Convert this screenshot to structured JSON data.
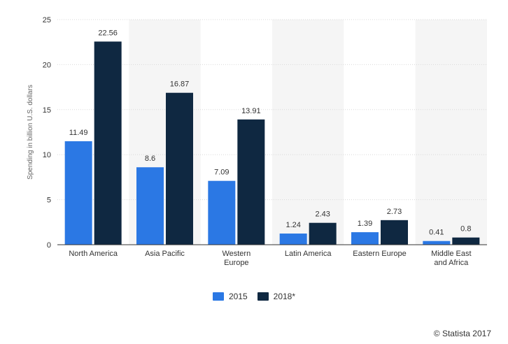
{
  "chart_data": {
    "type": "bar",
    "categories": [
      "North America",
      "Asia Pacific",
      "Western Europe",
      "Latin America",
      "Eastern Europe",
      "Middle East and Africa"
    ],
    "category_lines": [
      [
        "North America"
      ],
      [
        "Asia Pacific"
      ],
      [
        "Western",
        "Europe"
      ],
      [
        "Latin America"
      ],
      [
        "Eastern Europe"
      ],
      [
        "Middle East",
        "and Africa"
      ]
    ],
    "series": [
      {
        "name": "2015",
        "values": [
          11.49,
          8.6,
          7.09,
          1.24,
          1.39,
          0.41
        ],
        "labels": [
          "11.49",
          "8.6",
          "7.09",
          "1.24",
          "1.39",
          "0.41"
        ],
        "color": "#2b78e4"
      },
      {
        "name": "2018*",
        "values": [
          22.56,
          16.87,
          13.91,
          2.43,
          2.73,
          0.8
        ],
        "labels": [
          "22.56",
          "16.87",
          "13.91",
          "2.43",
          "2.73",
          "0.8"
        ],
        "color": "#0f2841"
      }
    ],
    "ylabel": "Spending in billion U.S. dollars",
    "ylim": [
      0,
      25
    ],
    "yticks": [
      "0",
      "5",
      "10",
      "15",
      "20",
      "25"
    ],
    "ytick_values": [
      0,
      5,
      10,
      15,
      20,
      25
    ],
    "grid": true,
    "legend_position": "bottom-center",
    "alternating_band_color": "#f5f5f5",
    "gridline_color": "#d9d9d9"
  },
  "credit": "© Statista 2017"
}
